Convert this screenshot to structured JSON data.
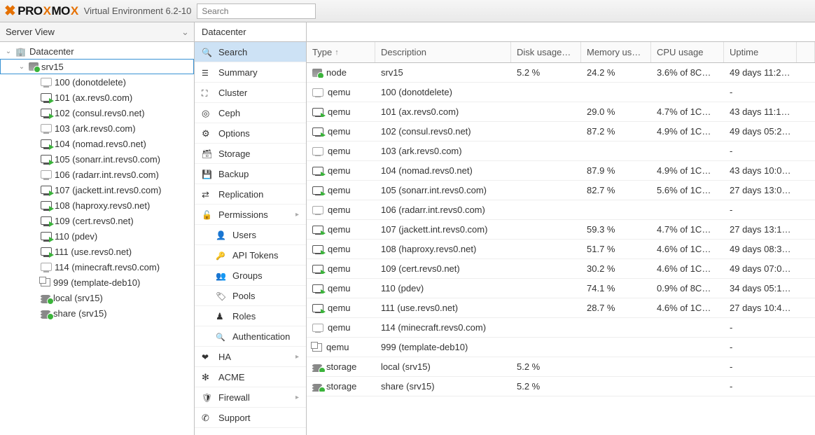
{
  "topbar": {
    "brand_a": "PRO",
    "brand_b": "MO",
    "brand_c": "X",
    "env": "Virtual Environment 6.2-10",
    "search_placeholder": "Search"
  },
  "view_selector": "Server View",
  "tree": [
    {
      "id": "dc",
      "indent": 0,
      "toggle": "v",
      "icon": "building",
      "label": "Datacenter"
    },
    {
      "id": "srv15",
      "indent": 1,
      "toggle": "v",
      "icon": "server",
      "label": "srv15",
      "selected": true
    },
    {
      "id": "100",
      "indent": 2,
      "icon": "vm-off",
      "label": "100 (donotdelete)"
    },
    {
      "id": "101",
      "indent": 2,
      "icon": "vm-on",
      "label": "101 (ax.revs0.com)"
    },
    {
      "id": "102",
      "indent": 2,
      "icon": "vm-on",
      "label": "102 (consul.revs0.net)"
    },
    {
      "id": "103",
      "indent": 2,
      "icon": "vm-off",
      "label": "103 (ark.revs0.com)"
    },
    {
      "id": "104",
      "indent": 2,
      "icon": "vm-on",
      "label": "104 (nomad.revs0.net)"
    },
    {
      "id": "105",
      "indent": 2,
      "icon": "vm-on",
      "label": "105 (sonarr.int.revs0.com)"
    },
    {
      "id": "106",
      "indent": 2,
      "icon": "vm-off",
      "label": "106 (radarr.int.revs0.com)"
    },
    {
      "id": "107",
      "indent": 2,
      "icon": "vm-on",
      "label": "107 (jackett.int.revs0.com)"
    },
    {
      "id": "108",
      "indent": 2,
      "icon": "vm-on",
      "label": "108 (haproxy.revs0.net)"
    },
    {
      "id": "109",
      "indent": 2,
      "icon": "vm-on",
      "label": "109 (cert.revs0.net)"
    },
    {
      "id": "110",
      "indent": 2,
      "icon": "vm-on",
      "label": "110 (pdev)"
    },
    {
      "id": "111",
      "indent": 2,
      "icon": "vm-on",
      "label": "111 (use.revs0.net)"
    },
    {
      "id": "114",
      "indent": 2,
      "icon": "vm-off",
      "label": "114 (minecraft.revs0.com)"
    },
    {
      "id": "999",
      "indent": 2,
      "icon": "tmpl",
      "label": "999 (template-deb10)"
    },
    {
      "id": "local",
      "indent": 2,
      "icon": "storage",
      "label": "local (srv15)"
    },
    {
      "id": "share",
      "indent": 2,
      "icon": "storage",
      "label": "share (srv15)"
    }
  ],
  "datacenter_label": "Datacenter",
  "menu": [
    {
      "icon": "search",
      "label": "Search",
      "selected": true
    },
    {
      "icon": "list",
      "label": "Summary"
    },
    {
      "icon": "cluster",
      "label": "Cluster"
    },
    {
      "icon": "ceph",
      "label": "Ceph"
    },
    {
      "icon": "gear",
      "label": "Options"
    },
    {
      "icon": "db",
      "label": "Storage"
    },
    {
      "icon": "floppy",
      "label": "Backup"
    },
    {
      "icon": "repl",
      "label": "Replication"
    },
    {
      "icon": "lock",
      "label": "Permissions",
      "arrow": true
    },
    {
      "icon": "user",
      "label": "Users",
      "sub": true
    },
    {
      "icon": "key",
      "label": "API Tokens",
      "sub": true
    },
    {
      "icon": "group",
      "label": "Groups",
      "sub": true
    },
    {
      "icon": "tag",
      "label": "Pools",
      "sub": true
    },
    {
      "icon": "role",
      "label": "Roles",
      "sub": true
    },
    {
      "icon": "auth",
      "label": "Authentication",
      "sub": true
    },
    {
      "icon": "heart",
      "label": "HA",
      "arrow": true
    },
    {
      "icon": "cert",
      "label": "ACME"
    },
    {
      "icon": "shield",
      "label": "Firewall",
      "arrow": true
    },
    {
      "icon": "support",
      "label": "Support"
    }
  ],
  "grid": {
    "columns": {
      "type": "Type",
      "desc": "Description",
      "disk": "Disk usage…",
      "mem": "Memory us…",
      "cpu": "CPU usage",
      "uptime": "Uptime"
    },
    "rows": [
      {
        "icon": "server",
        "type": "node",
        "desc": "srv15",
        "disk": "5.2 %",
        "mem": "24.2 %",
        "cpu": "3.6% of 8C…",
        "uptime": "49 days 11:2…"
      },
      {
        "icon": "vm-off",
        "type": "qemu",
        "desc": "100 (donotdelete)",
        "disk": "",
        "mem": "",
        "cpu": "",
        "uptime": "-"
      },
      {
        "icon": "vm-on",
        "type": "qemu",
        "desc": "101 (ax.revs0.com)",
        "disk": "",
        "mem": "29.0 %",
        "cpu": "4.7% of 1C…",
        "uptime": "43 days 11:1…"
      },
      {
        "icon": "vm-on",
        "type": "qemu",
        "desc": "102 (consul.revs0.net)",
        "disk": "",
        "mem": "87.2 %",
        "cpu": "4.9% of 1C…",
        "uptime": "49 days 05:2…"
      },
      {
        "icon": "vm-off",
        "type": "qemu",
        "desc": "103 (ark.revs0.com)",
        "disk": "",
        "mem": "",
        "cpu": "",
        "uptime": "-"
      },
      {
        "icon": "vm-on",
        "type": "qemu",
        "desc": "104 (nomad.revs0.net)",
        "disk": "",
        "mem": "87.9 %",
        "cpu": "4.9% of 1C…",
        "uptime": "43 days 10:0…"
      },
      {
        "icon": "vm-on",
        "type": "qemu",
        "desc": "105 (sonarr.int.revs0.com)",
        "disk": "",
        "mem": "82.7 %",
        "cpu": "5.6% of 1C…",
        "uptime": "27 days 13:0…"
      },
      {
        "icon": "vm-off",
        "type": "qemu",
        "desc": "106 (radarr.int.revs0.com)",
        "disk": "",
        "mem": "",
        "cpu": "",
        "uptime": "-"
      },
      {
        "icon": "vm-on",
        "type": "qemu",
        "desc": "107 (jackett.int.revs0.com)",
        "disk": "",
        "mem": "59.3 %",
        "cpu": "4.7% of 1C…",
        "uptime": "27 days 13:1…"
      },
      {
        "icon": "vm-on",
        "type": "qemu",
        "desc": "108 (haproxy.revs0.net)",
        "disk": "",
        "mem": "51.7 %",
        "cpu": "4.6% of 1C…",
        "uptime": "49 days 08:3…"
      },
      {
        "icon": "vm-on",
        "type": "qemu",
        "desc": "109 (cert.revs0.net)",
        "disk": "",
        "mem": "30.2 %",
        "cpu": "4.6% of 1C…",
        "uptime": "49 days 07:0…"
      },
      {
        "icon": "vm-on",
        "type": "qemu",
        "desc": "110 (pdev)",
        "disk": "",
        "mem": "74.1 %",
        "cpu": "0.9% of 8C…",
        "uptime": "34 days 05:1…"
      },
      {
        "icon": "vm-on",
        "type": "qemu",
        "desc": "111 (use.revs0.net)",
        "disk": "",
        "mem": "28.7 %",
        "cpu": "4.6% of 1C…",
        "uptime": "27 days 10:4…"
      },
      {
        "icon": "vm-off",
        "type": "qemu",
        "desc": "114 (minecraft.revs0.com)",
        "disk": "",
        "mem": "",
        "cpu": "",
        "uptime": "-"
      },
      {
        "icon": "tmpl",
        "type": "qemu",
        "desc": "999 (template-deb10)",
        "disk": "",
        "mem": "",
        "cpu": "",
        "uptime": "-"
      },
      {
        "icon": "storage",
        "type": "storage",
        "desc": "local (srv15)",
        "disk": "5.2 %",
        "mem": "",
        "cpu": "",
        "uptime": "-"
      },
      {
        "icon": "storage",
        "type": "storage",
        "desc": "share (srv15)",
        "disk": "5.2 %",
        "mem": "",
        "cpu": "",
        "uptime": "-"
      }
    ]
  }
}
